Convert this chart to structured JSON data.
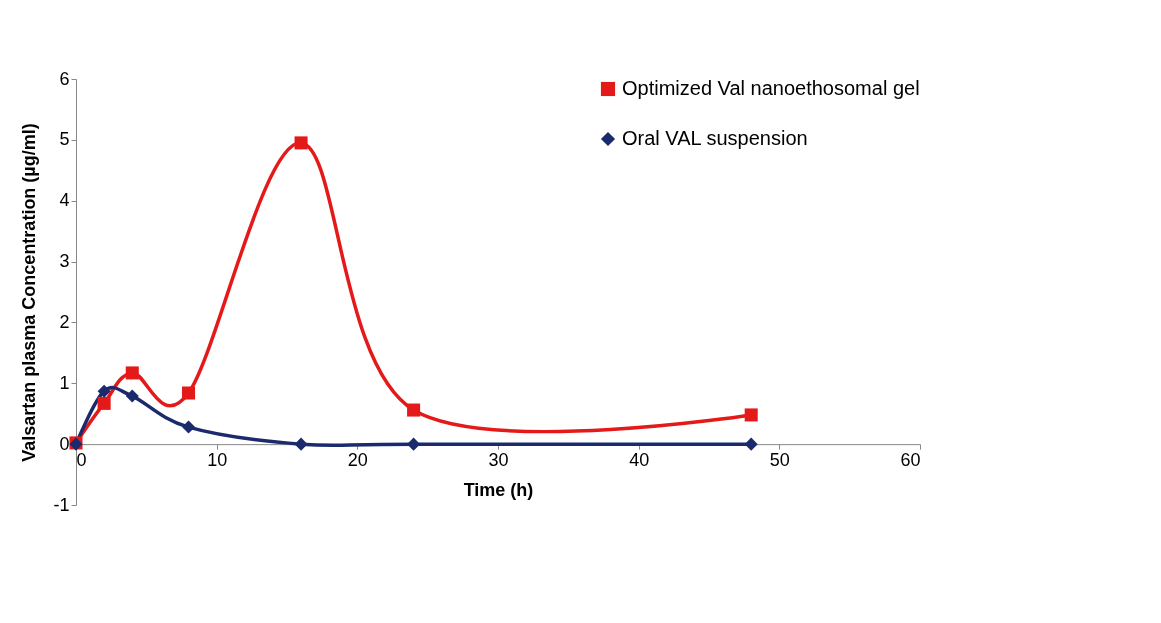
{
  "chart_data": {
    "type": "line",
    "xlabel": "Time (h)",
    "ylabel": "Valsartan plasma Concentration (µg/ml)",
    "x": [
      0,
      2,
      4,
      8,
      16,
      24,
      48
    ],
    "series": [
      {
        "name": "Optimized Val nanoethosomal gel",
        "color": "#e41a1a",
        "marker": "square",
        "values": [
          0.02,
          0.67,
          1.17,
          0.84,
          4.95,
          0.56,
          0.48
        ]
      },
      {
        "name": "Oral VAL suspension",
        "color": "#1a2a6c",
        "marker": "diamond",
        "values": [
          0,
          0.87,
          0.79,
          0.28,
          0,
          0,
          0
        ]
      }
    ],
    "xlim": [
      0,
      60
    ],
    "xticks": [
      0,
      10,
      20,
      30,
      40,
      50,
      60
    ],
    "ylim": [
      -1,
      6
    ],
    "yticks": [
      -1,
      0,
      1,
      2,
      3,
      4,
      5,
      6
    ],
    "grid": false,
    "legend": "top right",
    "line_style": "solid"
  }
}
